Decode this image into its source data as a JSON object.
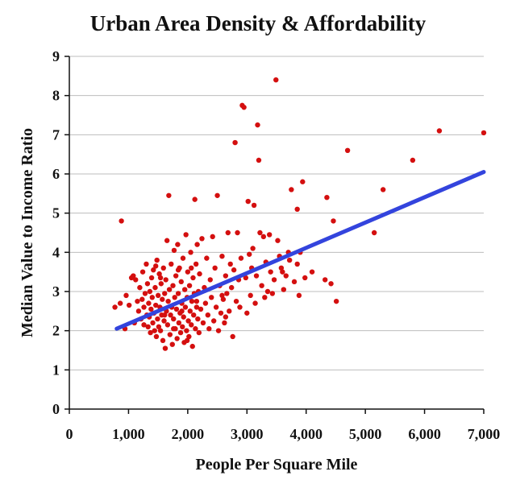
{
  "chart_data": {
    "type": "scatter",
    "title": "Urban Area Density & Affordability",
    "xlabel": "People Per Square Mile",
    "ylabel": "Median Value to Income Ratio",
    "xlim": [
      0,
      7000
    ],
    "ylim": [
      0,
      9
    ],
    "xticks": [
      "0",
      "1,000",
      "2,000",
      "3,000",
      "4,000",
      "5,000",
      "6,000",
      "7,000"
    ],
    "yticks": [
      "0",
      "1",
      "2",
      "3",
      "4",
      "5",
      "6",
      "7",
      "8",
      "9"
    ],
    "grid": "horizontal",
    "colors": {
      "points": "#d40f0f",
      "trend": "#3344dd",
      "grid": "#bdbdbd"
    },
    "trendline": {
      "x": [
        800,
        7000
      ],
      "y": [
        2.05,
        6.05
      ]
    },
    "series": [
      {
        "points": [
          [
            880,
            4.8
          ],
          [
            940,
            2.05
          ],
          [
            770,
            2.6
          ],
          [
            860,
            2.7
          ],
          [
            960,
            2.9
          ],
          [
            1010,
            2.65
          ],
          [
            1050,
            3.35
          ],
          [
            1080,
            3.4
          ],
          [
            1100,
            2.2
          ],
          [
            1120,
            3.3
          ],
          [
            1150,
            2.75
          ],
          [
            1170,
            2.5
          ],
          [
            1190,
            3.1
          ],
          [
            1210,
            2.3
          ],
          [
            1230,
            2.8
          ],
          [
            1240,
            3.5
          ],
          [
            1260,
            2.6
          ],
          [
            1280,
            2.95
          ],
          [
            1300,
            3.7
          ],
          [
            1310,
            2.4
          ],
          [
            1320,
            3.2
          ],
          [
            1330,
            2.1
          ],
          [
            1340,
            2.7
          ],
          [
            1350,
            2.35
          ],
          [
            1360,
            3.0
          ],
          [
            1370,
            1.95
          ],
          [
            1380,
            2.55
          ],
          [
            1390,
            3.35
          ],
          [
            1400,
            2.85
          ],
          [
            1410,
            2.2
          ],
          [
            1420,
            3.55
          ],
          [
            1430,
            2.45
          ],
          [
            1440,
            2.0
          ],
          [
            1450,
            3.1
          ],
          [
            1460,
            2.65
          ],
          [
            1470,
            1.85
          ],
          [
            1480,
            3.8
          ],
          [
            1490,
            2.3
          ],
          [
            1500,
            2.9
          ],
          [
            1510,
            2.1
          ],
          [
            1520,
            3.45
          ],
          [
            1530,
            2.6
          ],
          [
            1540,
            2.0
          ],
          [
            1550,
            3.2
          ],
          [
            1560,
            2.4
          ],
          [
            1570,
            2.8
          ],
          [
            1580,
            1.75
          ],
          [
            1590,
            3.6
          ],
          [
            1600,
            2.25
          ],
          [
            1610,
            2.95
          ],
          [
            1620,
            1.55
          ],
          [
            1630,
            3.3
          ],
          [
            1640,
            2.5
          ],
          [
            1650,
            4.3
          ],
          [
            1660,
            2.15
          ],
          [
            1670,
            2.75
          ],
          [
            1680,
            5.45
          ],
          [
            1690,
            3.05
          ],
          [
            1700,
            1.9
          ],
          [
            1710,
            2.4
          ],
          [
            1720,
            3.7
          ],
          [
            1730,
            2.6
          ],
          [
            1740,
            1.65
          ],
          [
            1750,
            3.15
          ],
          [
            1760,
            2.3
          ],
          [
            1770,
            4.05
          ],
          [
            1780,
            2.85
          ],
          [
            1790,
            2.05
          ],
          [
            1800,
            3.4
          ],
          [
            1810,
            2.55
          ],
          [
            1820,
            1.8
          ],
          [
            1830,
            4.2
          ],
          [
            1840,
            2.95
          ],
          [
            1850,
            2.2
          ],
          [
            1860,
            3.6
          ],
          [
            1870,
            2.45
          ],
          [
            1880,
            1.95
          ],
          [
            1890,
            3.25
          ],
          [
            1900,
            2.7
          ],
          [
            1910,
            2.1
          ],
          [
            1920,
            3.85
          ],
          [
            1930,
            2.35
          ],
          [
            1940,
            1.7
          ],
          [
            1950,
            3.05
          ],
          [
            1960,
            2.6
          ],
          [
            1970,
            4.45
          ],
          [
            1980,
            2.0
          ],
          [
            1990,
            2.85
          ],
          [
            2000,
            3.5
          ],
          [
            2010,
            2.25
          ],
          [
            2020,
            1.85
          ],
          [
            2030,
            3.15
          ],
          [
            2040,
            2.5
          ],
          [
            2050,
            4.0
          ],
          [
            2060,
            2.15
          ],
          [
            2070,
            2.75
          ],
          [
            2080,
            1.6
          ],
          [
            2090,
            3.35
          ],
          [
            2100,
            2.4
          ],
          [
            2110,
            2.95
          ],
          [
            2120,
            5.35
          ],
          [
            2130,
            2.05
          ],
          [
            2140,
            3.7
          ],
          [
            2150,
            2.6
          ],
          [
            2160,
            4.2
          ],
          [
            2170,
            2.3
          ],
          [
            2180,
            3.0
          ],
          [
            2190,
            1.95
          ],
          [
            2200,
            3.45
          ],
          [
            2220,
            2.55
          ],
          [
            2240,
            4.35
          ],
          [
            2260,
            2.2
          ],
          [
            2280,
            3.1
          ],
          [
            2300,
            2.7
          ],
          [
            2320,
            3.85
          ],
          [
            2340,
            2.4
          ],
          [
            2360,
            2.05
          ],
          [
            2380,
            3.3
          ],
          [
            2400,
            2.85
          ],
          [
            2420,
            4.4
          ],
          [
            2440,
            2.25
          ],
          [
            2460,
            3.6
          ],
          [
            2480,
            2.6
          ],
          [
            2500,
            5.45
          ],
          [
            2520,
            2.0
          ],
          [
            2540,
            3.15
          ],
          [
            2560,
            2.45
          ],
          [
            2580,
            3.9
          ],
          [
            2600,
            2.8
          ],
          [
            2620,
            2.2
          ],
          [
            2640,
            3.4
          ],
          [
            2660,
            2.95
          ],
          [
            2680,
            4.5
          ],
          [
            2700,
            2.5
          ],
          [
            2720,
            3.7
          ],
          [
            2740,
            3.1
          ],
          [
            2760,
            1.85
          ],
          [
            2780,
            3.55
          ],
          [
            2800,
            6.8
          ],
          [
            2820,
            2.75
          ],
          [
            2840,
            4.5
          ],
          [
            2860,
            3.3
          ],
          [
            2880,
            2.6
          ],
          [
            2900,
            3.85
          ],
          [
            2920,
            7.75
          ],
          [
            2950,
            7.7
          ],
          [
            2980,
            3.35
          ],
          [
            3000,
            2.45
          ],
          [
            3020,
            5.3
          ],
          [
            3040,
            3.95
          ],
          [
            3060,
            2.9
          ],
          [
            3080,
            3.6
          ],
          [
            3100,
            4.1
          ],
          [
            3120,
            5.2
          ],
          [
            3140,
            2.7
          ],
          [
            3160,
            3.4
          ],
          [
            3180,
            7.25
          ],
          [
            3200,
            6.35
          ],
          [
            3220,
            4.5
          ],
          [
            3250,
            3.15
          ],
          [
            3280,
            4.4
          ],
          [
            3300,
            2.85
          ],
          [
            3320,
            3.75
          ],
          [
            3350,
            3.0
          ],
          [
            3380,
            4.45
          ],
          [
            3400,
            3.5
          ],
          [
            3430,
            2.95
          ],
          [
            3460,
            3.3
          ],
          [
            3490,
            8.4
          ],
          [
            3520,
            4.3
          ],
          [
            3550,
            3.9
          ],
          [
            3580,
            3.6
          ],
          [
            3620,
            3.05
          ],
          [
            3660,
            3.4
          ],
          [
            3700,
            4.0
          ],
          [
            3750,
            5.6
          ],
          [
            3800,
            3.25
          ],
          [
            3850,
            5.1
          ],
          [
            3880,
            2.9
          ],
          [
            3900,
            4.0
          ],
          [
            3940,
            5.8
          ],
          [
            3980,
            3.35
          ],
          [
            4100,
            3.5
          ],
          [
            4320,
            3.3
          ],
          [
            4350,
            5.4
          ],
          [
            4420,
            3.2
          ],
          [
            4460,
            4.8
          ],
          [
            4510,
            2.75
          ],
          [
            4700,
            6.6
          ],
          [
            5150,
            4.5
          ],
          [
            5300,
            5.6
          ],
          [
            5800,
            6.35
          ],
          [
            6250,
            7.1
          ],
          [
            7000,
            7.05
          ],
          [
            3720,
            3.8
          ],
          [
            3600,
            3.5
          ],
          [
            3850,
            3.7
          ],
          [
            2580,
            2.9
          ],
          [
            2640,
            2.35
          ],
          [
            1460,
            3.65
          ],
          [
            1540,
            3.35
          ],
          [
            1760,
            2.05
          ],
          [
            1840,
            3.55
          ],
          [
            1990,
            1.75
          ],
          [
            2060,
            3.6
          ],
          [
            2150,
            2.75
          ],
          [
            1260,
            2.15
          ],
          [
            1610,
            2.4
          ],
          [
            1900,
            2.5
          ]
        ]
      }
    ]
  }
}
